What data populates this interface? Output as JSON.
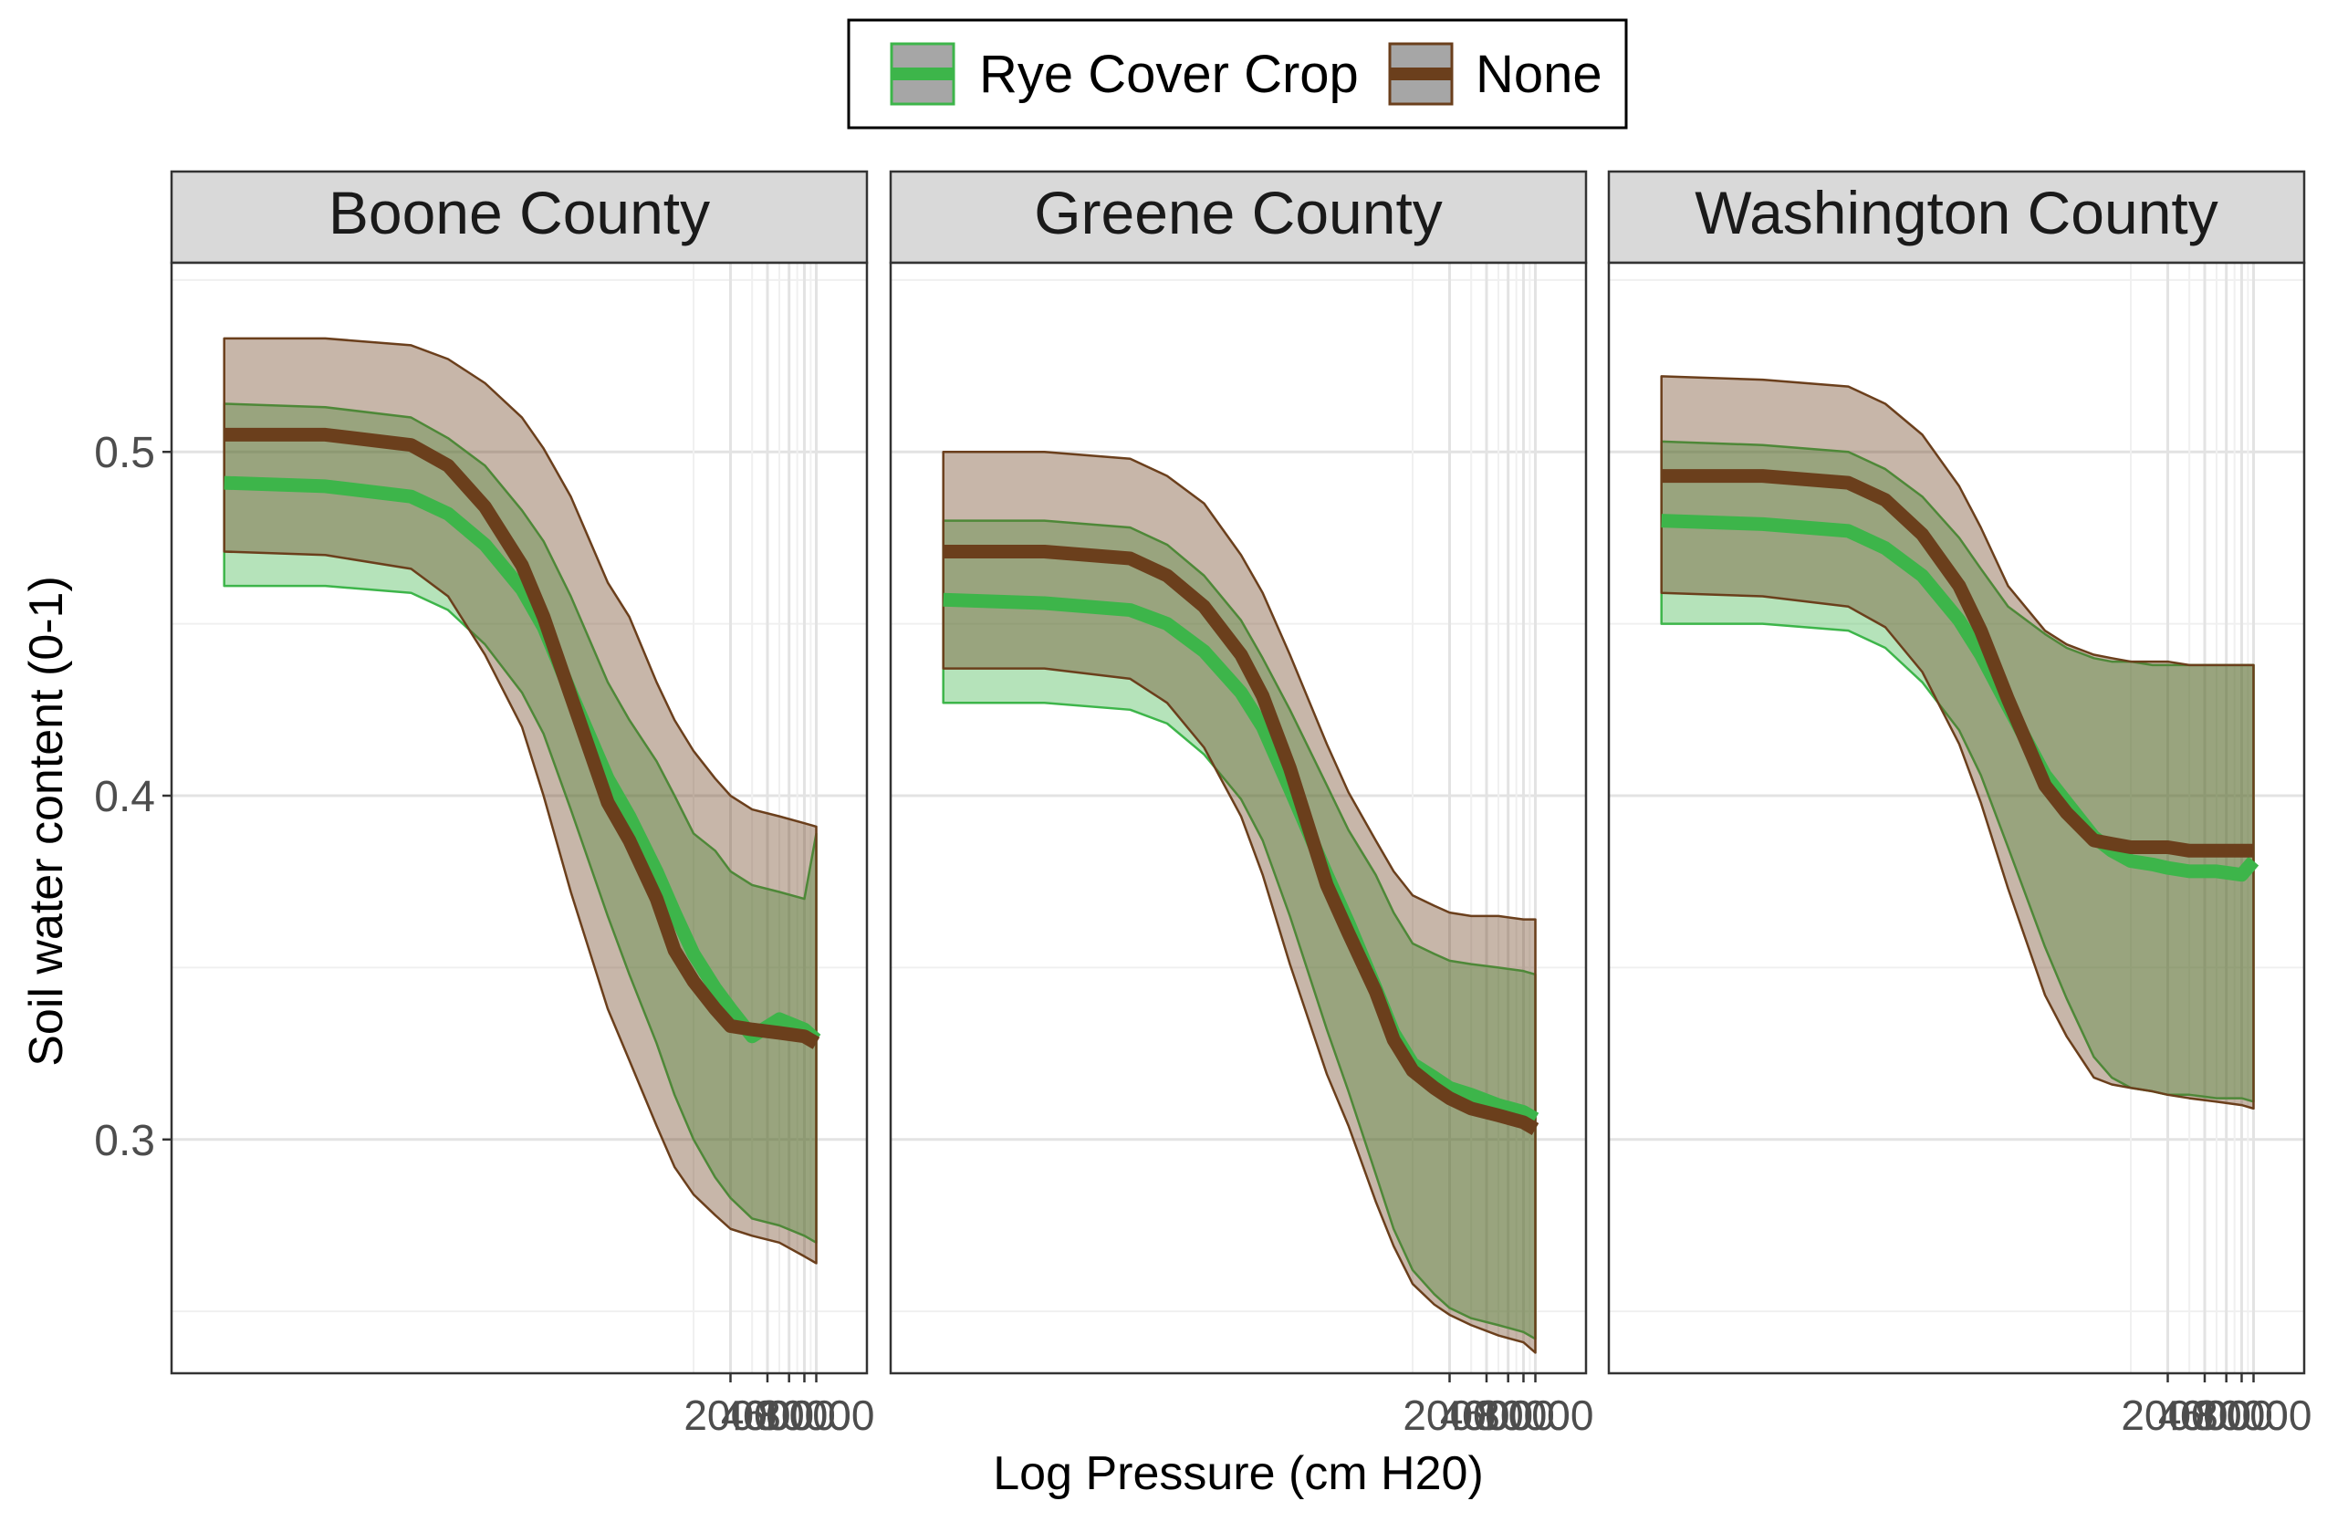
{
  "chart_data": {
    "type": "area",
    "legend": {
      "placement": "top",
      "entries": [
        {
          "label": "Rye Cover Crop",
          "color": "#3db54a",
          "fill": "#9fd9a2"
        },
        {
          "label": "None",
          "color": "#6b3f1c",
          "fill": "#b29a86"
        }
      ]
    },
    "xlabel": "Log Pressure (cm H20)",
    "ylabel": "Soil water content (0-1)",
    "x_scale": "log",
    "xlim": [
      0.1,
      20000
    ],
    "x_ticks": [
      "2000",
      "4000",
      "6000",
      "8000",
      "10000"
    ],
    "ylim": [
      0.232,
      0.555
    ],
    "y_ticks": [
      "0.3",
      "0.4",
      "0.5"
    ],
    "grid": true,
    "x": [
      0.15,
      1,
      5,
      10,
      20,
      40,
      60,
      100,
      200,
      300,
      500,
      700,
      1000,
      1500,
      2000,
      3000,
      5000,
      8000,
      10000
    ],
    "panels": [
      {
        "title": "Boone County",
        "series": [
          {
            "name": "Rye Cover Crop",
            "values": [
              0.491,
              0.49,
              0.487,
              0.482,
              0.473,
              0.46,
              0.449,
              0.43,
              0.405,
              0.394,
              0.378,
              0.366,
              0.354,
              0.344,
              0.338,
              0.33,
              0.335,
              0.332,
              0.329
            ],
            "lower": [
              0.461,
              0.461,
              0.459,
              0.454,
              0.444,
              0.43,
              0.418,
              0.396,
              0.365,
              0.348,
              0.328,
              0.313,
              0.3,
              0.289,
              0.283,
              0.277,
              0.275,
              0.272,
              0.27
            ],
            "upper": [
              0.514,
              0.513,
              0.51,
              0.504,
              0.496,
              0.483,
              0.474,
              0.458,
              0.433,
              0.422,
              0.41,
              0.4,
              0.389,
              0.384,
              0.378,
              0.374,
              0.372,
              0.37,
              0.389
            ]
          },
          {
            "name": "None",
            "values": [
              0.505,
              0.505,
              0.502,
              0.496,
              0.484,
              0.467,
              0.452,
              0.429,
              0.398,
              0.387,
              0.37,
              0.355,
              0.346,
              0.338,
              0.333,
              0.332,
              0.331,
              0.33,
              0.328
            ],
            "lower": [
              0.471,
              0.47,
              0.466,
              0.458,
              0.441,
              0.42,
              0.4,
              0.372,
              0.338,
              0.323,
              0.304,
              0.292,
              0.284,
              0.278,
              0.274,
              0.272,
              0.27,
              0.266,
              0.264
            ],
            "upper": [
              0.533,
              0.533,
              0.531,
              0.527,
              0.52,
              0.51,
              0.501,
              0.487,
              0.462,
              0.452,
              0.433,
              0.422,
              0.413,
              0.405,
              0.4,
              0.396,
              0.394,
              0.392,
              0.391
            ]
          }
        ]
      },
      {
        "title": "Greene County",
        "series": [
          {
            "name": "Rye Cover Crop",
            "values": [
              0.457,
              0.456,
              0.454,
              0.45,
              0.442,
              0.43,
              0.42,
              0.402,
              0.377,
              0.363,
              0.344,
              0.331,
              0.322,
              0.318,
              0.315,
              0.313,
              0.31,
              0.308,
              0.306
            ],
            "lower": [
              0.427,
              0.427,
              0.425,
              0.421,
              0.412,
              0.399,
              0.387,
              0.365,
              0.332,
              0.314,
              0.29,
              0.274,
              0.262,
              0.255,
              0.251,
              0.248,
              0.246,
              0.244,
              0.242
            ],
            "upper": [
              0.48,
              0.48,
              0.478,
              0.473,
              0.464,
              0.451,
              0.44,
              0.425,
              0.403,
              0.39,
              0.377,
              0.366,
              0.357,
              0.354,
              0.352,
              0.351,
              0.35,
              0.349,
              0.348
            ]
          },
          {
            "name": "None",
            "values": [
              0.471,
              0.471,
              0.469,
              0.464,
              0.455,
              0.441,
              0.429,
              0.408,
              0.374,
              0.36,
              0.343,
              0.329,
              0.32,
              0.315,
              0.312,
              0.309,
              0.307,
              0.305,
              0.303
            ],
            "lower": [
              0.437,
              0.437,
              0.434,
              0.427,
              0.414,
              0.394,
              0.377,
              0.351,
              0.319,
              0.304,
              0.282,
              0.269,
              0.258,
              0.252,
              0.249,
              0.246,
              0.243,
              0.241,
              0.238
            ],
            "upper": [
              0.5,
              0.5,
              0.498,
              0.493,
              0.485,
              0.47,
              0.459,
              0.441,
              0.415,
              0.401,
              0.387,
              0.378,
              0.371,
              0.368,
              0.366,
              0.365,
              0.365,
              0.364,
              0.364
            ]
          }
        ]
      },
      {
        "title": "Washington County",
        "series": [
          {
            "name": "Rye Cover Crop",
            "values": [
              0.48,
              0.479,
              0.477,
              0.472,
              0.464,
              0.451,
              0.441,
              0.426,
              0.406,
              0.398,
              0.388,
              0.384,
              0.381,
              0.38,
              0.379,
              0.378,
              0.378,
              0.377,
              0.381
            ],
            "lower": [
              0.45,
              0.45,
              0.448,
              0.443,
              0.433,
              0.419,
              0.406,
              0.385,
              0.356,
              0.341,
              0.324,
              0.318,
              0.315,
              0.314,
              0.313,
              0.313,
              0.312,
              0.312,
              0.311
            ],
            "upper": [
              0.503,
              0.502,
              0.5,
              0.495,
              0.487,
              0.475,
              0.466,
              0.455,
              0.447,
              0.443,
              0.44,
              0.439,
              0.439,
              0.438,
              0.438,
              0.438,
              0.438,
              0.438,
              0.438
            ]
          },
          {
            "name": "None",
            "values": [
              0.493,
              0.493,
              0.491,
              0.486,
              0.476,
              0.461,
              0.448,
              0.428,
              0.403,
              0.395,
              0.387,
              0.386,
              0.385,
              0.385,
              0.385,
              0.384,
              0.384,
              0.384,
              0.384
            ],
            "lower": [
              0.459,
              0.458,
              0.455,
              0.449,
              0.436,
              0.415,
              0.398,
              0.373,
              0.342,
              0.33,
              0.318,
              0.316,
              0.315,
              0.314,
              0.313,
              0.312,
              0.311,
              0.31,
              0.309
            ],
            "upper": [
              0.522,
              0.521,
              0.519,
              0.514,
              0.505,
              0.49,
              0.478,
              0.461,
              0.448,
              0.444,
              0.441,
              0.44,
              0.439,
              0.439,
              0.439,
              0.438,
              0.438,
              0.438,
              0.438
            ]
          }
        ]
      }
    ]
  }
}
